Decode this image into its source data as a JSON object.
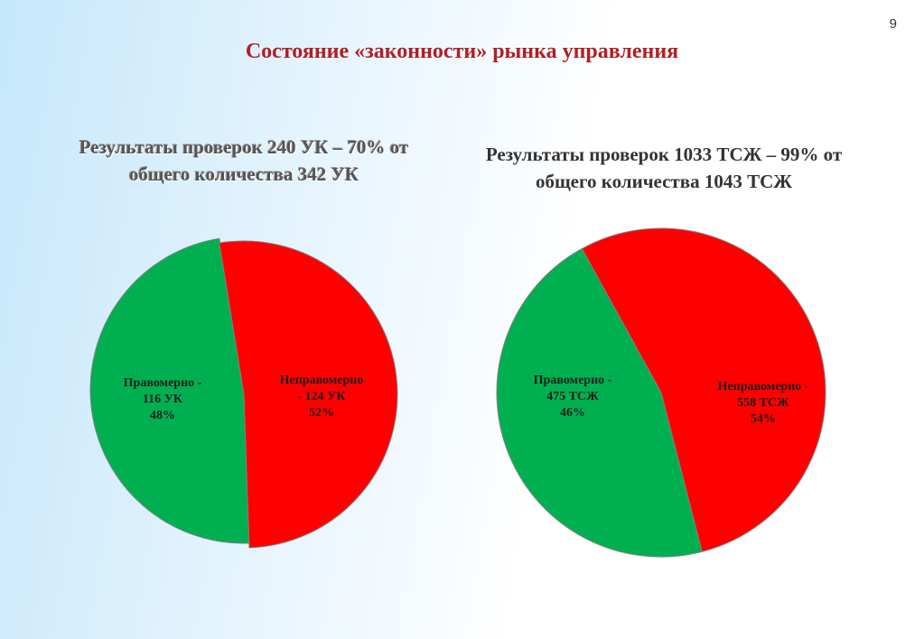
{
  "page_number": "9",
  "title": "Состояние «законности» рынка управления",
  "chart_data": [
    {
      "type": "pie",
      "title_lines": [
        "Результаты проверок 240 УК – 70% от",
        "общего количества 342 УК"
      ],
      "slices": [
        {
          "label_lines": [
            "Правомерно -",
            "116 УК",
            "48%"
          ],
          "value": 48,
          "color": "#00b050"
        },
        {
          "label_lines": [
            "Неправомерно",
            "- 124 УК",
            "52%"
          ],
          "value": 52,
          "color": "#ff0000"
        }
      ]
    },
    {
      "type": "pie",
      "title_lines": [
        "Результаты проверок  1033 ТСЖ – 99% от",
        "общего количества 1043 ТСЖ"
      ],
      "slices": [
        {
          "label_lines": [
            "Правомерно -",
            "475 ТСЖ",
            "46%"
          ],
          "value": 46,
          "color": "#00b050"
        },
        {
          "label_lines": [
            "Неправомерно -",
            "558 ТСЖ",
            "54%"
          ],
          "value": 54,
          "color": "#ff0000"
        }
      ]
    }
  ]
}
